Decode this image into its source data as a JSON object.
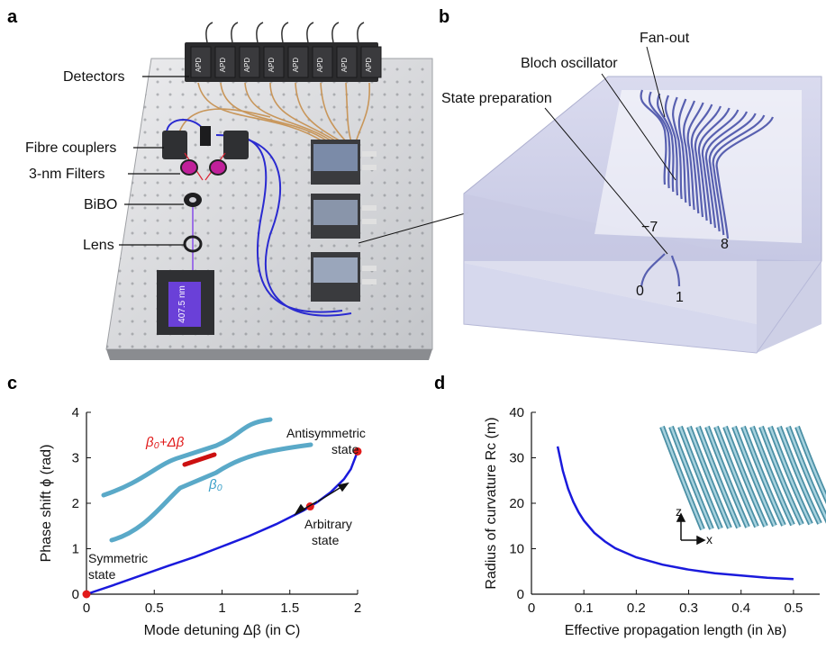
{
  "panels": {
    "a": {
      "letter": "a",
      "labels": {
        "detectors": "Detectors",
        "fibre_couplers": "Fibre couplers",
        "filters": "3-nm Filters",
        "bibo": "BiBO",
        "lens": "Lens"
      },
      "apd_label": "APD",
      "laser_label": "407.5 nm",
      "colors": {
        "table": "#d9dadc",
        "blue_fibre": "#2a2ad0",
        "orange_fibre": "#c8965a",
        "magenta": "#c0209a"
      }
    },
    "b": {
      "letter": "b",
      "labels": {
        "fan_out": "Fan-out",
        "bloch": "Bloch oscillator",
        "state_prep": "State preparation"
      },
      "port_labels": {
        "p0": "0",
        "p1": "1",
        "m7": "−7",
        "p8": "8"
      },
      "colors": {
        "glass": "#c9cbe6",
        "waveguide": "#5860b0"
      }
    },
    "c": {
      "letter": "c",
      "xlabel": "Mode detuning Δβ (in C)",
      "ylabel": "Phase shift ϕ (rad)",
      "annotations": {
        "antisym1": "Antisymmetric",
        "antisym2": "state",
        "arb1": "Arbitrary",
        "arb2": "state",
        "sym1": "Symmetric",
        "sym2": "state",
        "beta_plus": "β₀+Δβ",
        "beta0": "β₀"
      }
    },
    "d": {
      "letter": "d",
      "xlabel": "Effective propagation length (in λʙ)",
      "ylabel": "Radius of curvature Rᴄ (m)",
      "axis_z": "z",
      "axis_x": "x"
    }
  },
  "chart_data": [
    {
      "type": "line",
      "panel": "c",
      "xlim": [
        0,
        2
      ],
      "ylim": [
        0,
        4
      ],
      "xticks": [
        "0",
        "0.5",
        "1",
        "1.5",
        "2"
      ],
      "yticks": [
        "0",
        "1",
        "2",
        "3",
        "4"
      ],
      "series": [
        {
          "x": [
            0,
            0.2,
            0.4,
            0.6,
            0.8,
            1.0,
            1.2,
            1.4,
            1.6,
            1.7,
            1.8,
            1.9,
            1.95,
            2.0
          ],
          "y": [
            0,
            0.2,
            0.41,
            0.62,
            0.82,
            1.05,
            1.28,
            1.54,
            1.84,
            2.02,
            2.24,
            2.53,
            2.75,
            3.14
          ],
          "color": "#1a1adc"
        }
      ],
      "markers": [
        {
          "x": 0,
          "y": 0,
          "color": "#e21a1a"
        },
        {
          "x": 1.65,
          "y": 1.93,
          "color": "#e21a1a"
        },
        {
          "x": 2.0,
          "y": 3.14,
          "color": "#e21a1a"
        }
      ]
    },
    {
      "type": "line",
      "panel": "d",
      "xlim": [
        0,
        0.55
      ],
      "ylim": [
        0,
        40
      ],
      "xticks": [
        "0",
        "0.1",
        "0.2",
        "0.3",
        "0.4",
        "0.5"
      ],
      "yticks": [
        "0",
        "10",
        "20",
        "30",
        "40"
      ],
      "series": [
        {
          "x": [
            0.05,
            0.06,
            0.07,
            0.08,
            0.09,
            0.1,
            0.12,
            0.14,
            0.16,
            0.2,
            0.25,
            0.3,
            0.35,
            0.4,
            0.45,
            0.5
          ],
          "y": [
            32.5,
            27.1,
            23.2,
            20.3,
            18.0,
            16.2,
            13.5,
            11.6,
            10.1,
            8.1,
            6.5,
            5.4,
            4.6,
            4.1,
            3.6,
            3.3
          ],
          "color": "#1a1adc"
        }
      ]
    }
  ]
}
